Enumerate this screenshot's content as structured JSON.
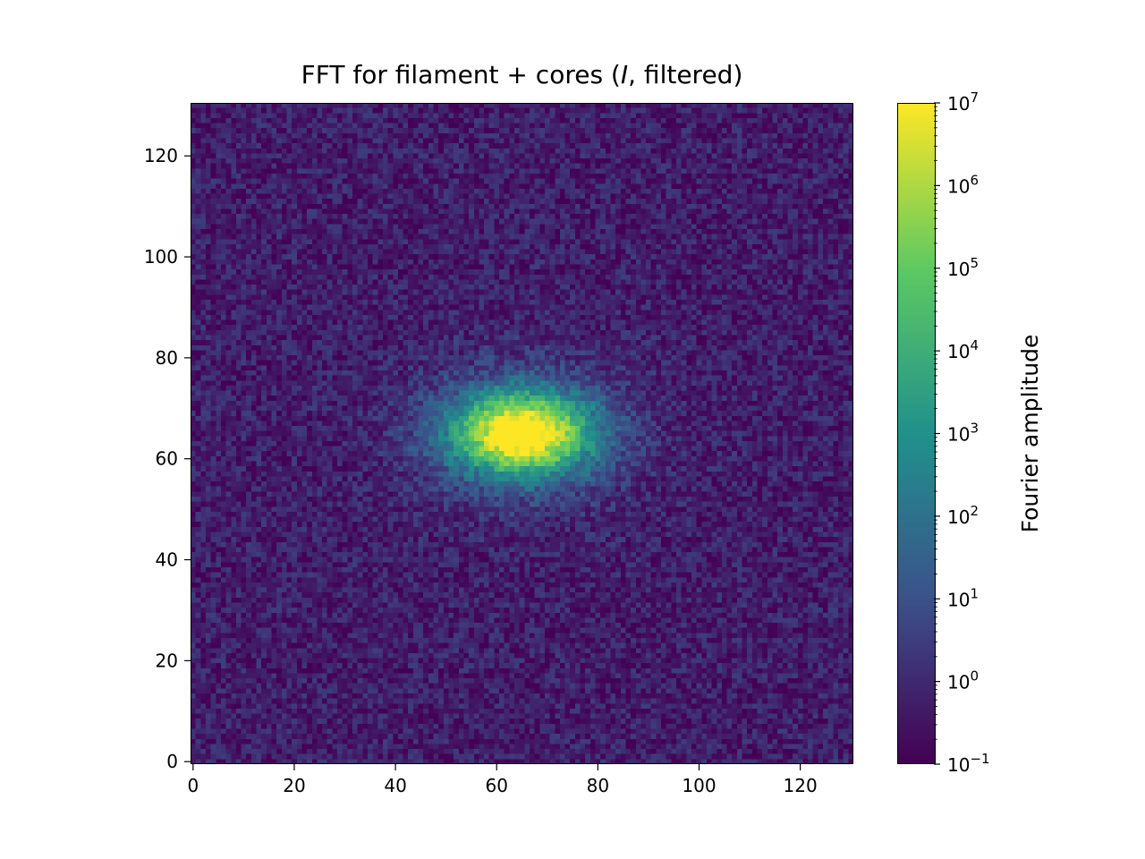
{
  "chart_data": {
    "type": "heatmap",
    "title": {
      "prefix": "FFT for filament + cores (",
      "italic": "I",
      "suffix": ", filtered)"
    },
    "xlabel": "",
    "ylabel": "",
    "grid": false,
    "image_shape": [
      131,
      131
    ],
    "x_range": [
      -0.5,
      130.5
    ],
    "y_range": [
      130.5,
      -0.5
    ],
    "y_inverted": true,
    "x_ticks": [
      0,
      20,
      40,
      60,
      80,
      100,
      120
    ],
    "y_ticks": [
      0,
      20,
      40,
      60,
      80,
      100,
      120
    ],
    "peak": {
      "x": 65,
      "y": 65,
      "value": 10000000
    },
    "peak_extent": {
      "x_half_width": 10,
      "y_half_width": 6
    },
    "background_level": 0.5,
    "colorscale": "viridis",
    "colors": [
      "#440154",
      "#3b528b",
      "#21918c",
      "#5ec962",
      "#fde725"
    ],
    "colorbar": {
      "label": "Fourier amplitude",
      "scale": "log",
      "range": [
        0.1,
        10000000
      ],
      "ticks": [
        {
          "base": "10",
          "exp": "−1",
          "value": 0.1
        },
        {
          "base": "10",
          "exp": "0",
          "value": 1
        },
        {
          "base": "10",
          "exp": "1",
          "value": 10
        },
        {
          "base": "10",
          "exp": "2",
          "value": 100
        },
        {
          "base": "10",
          "exp": "3",
          "value": 1000
        },
        {
          "base": "10",
          "exp": "4",
          "value": 10000
        },
        {
          "base": "10",
          "exp": "5",
          "value": 100000
        },
        {
          "base": "10",
          "exp": "6",
          "value": 1000000
        },
        {
          "base": "10",
          "exp": "7",
          "value": 10000000
        }
      ]
    }
  }
}
